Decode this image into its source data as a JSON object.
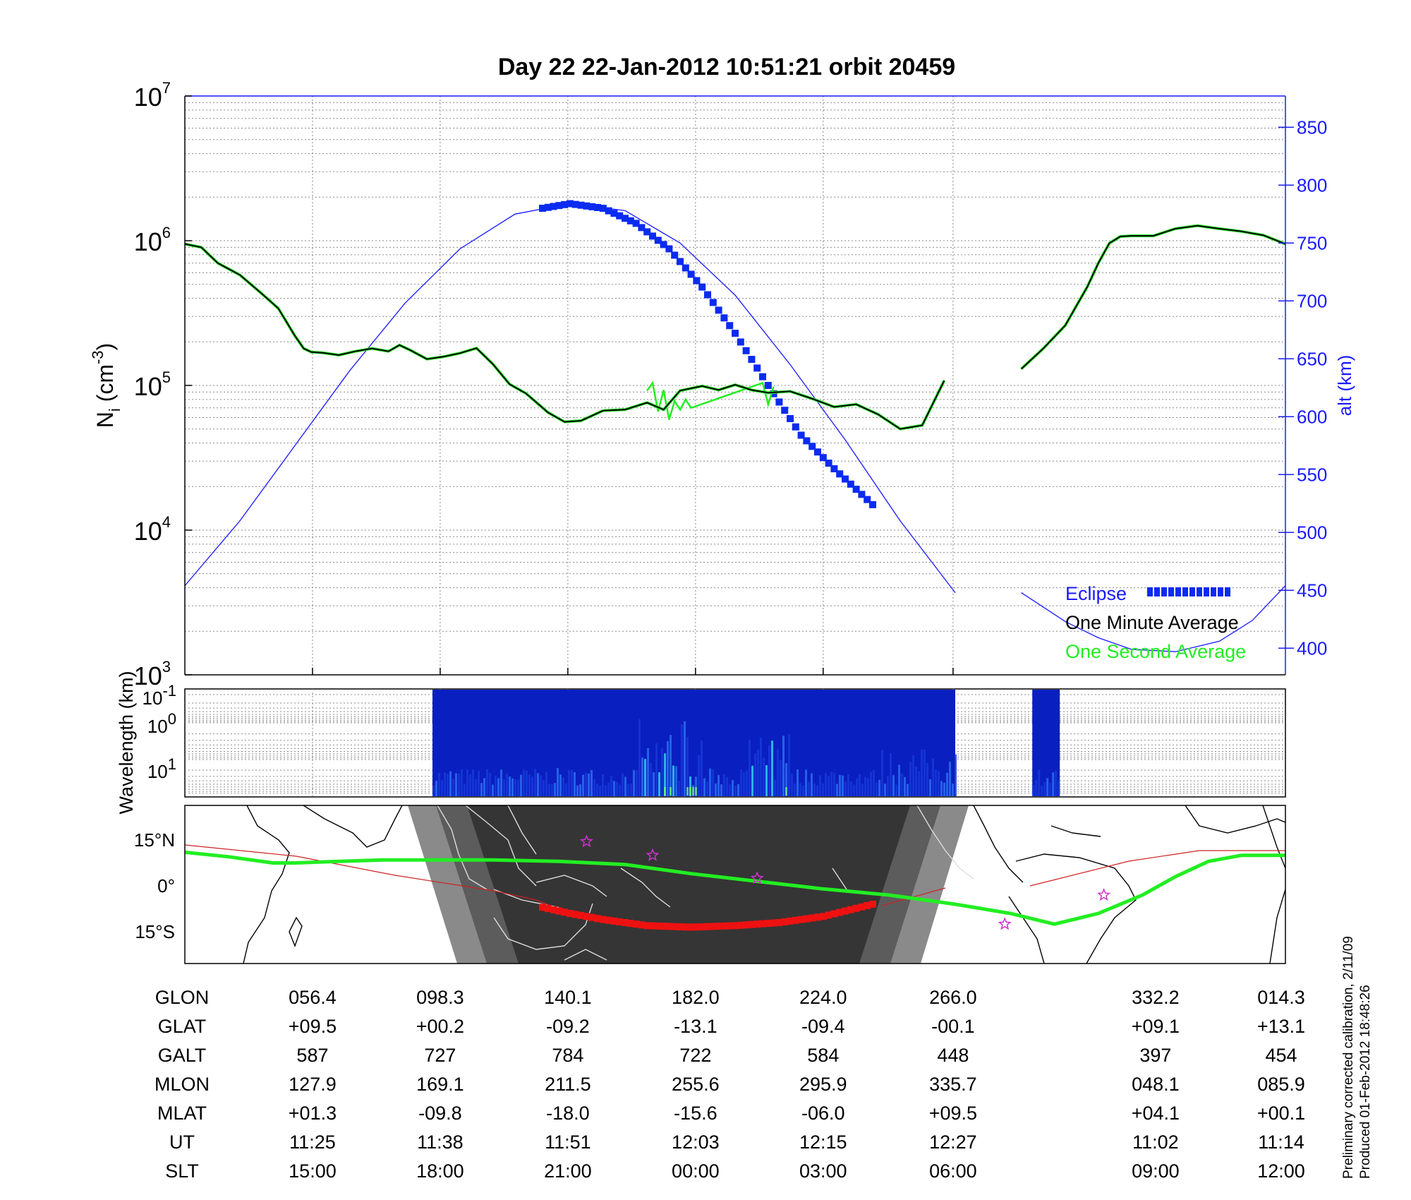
{
  "title": "Day 22  22-Jan-2012 10:51:21   orbit 20459",
  "colors": {
    "density_minute": "#000000",
    "density_second": "#22ee22",
    "altitude": "#1a1aff",
    "eclipse": "#0b2bf0",
    "eclipse_track": "#ee1111",
    "orbit_track": "#22ee22",
    "terminator": "#444444"
  },
  "chart_data": [
    {
      "type": "line",
      "title": "Day 22  22-Jan-2012 10:51:21   orbit 20459",
      "ylabel": "N_i (cm^-3)",
      "yscale": "log",
      "ylim": [
        1000,
        10000000
      ],
      "y_ticks": [
        {
          "base": "10",
          "exp": "3",
          "value": 1000
        },
        {
          "base": "10",
          "exp": "4",
          "value": 10000
        },
        {
          "base": "10",
          "exp": "5",
          "value": 100000
        },
        {
          "base": "10",
          "exp": "6",
          "value": 1000000
        },
        {
          "base": "10",
          "exp": "7",
          "value": 10000000
        }
      ],
      "y2label": "alt (km)",
      "y2lim": [
        377,
        877
      ],
      "y2_ticks": [
        "400",
        "450",
        "500",
        "550",
        "600",
        "650",
        "700",
        "750",
        "800",
        "850"
      ],
      "xlim": [
        0,
        100
      ],
      "x_ticks": [
        11.6,
        23.2,
        34.8,
        46.4,
        58.0,
        69.8
      ],
      "legend": {
        "position": "bottom-right",
        "entries": [
          "Eclipse",
          "One Minute Average",
          "One Second Average"
        ]
      },
      "series": [
        {
          "name": "One Minute Average",
          "segment": 1,
          "x": [
            0,
            1.5,
            3,
            5,
            7,
            8.5,
            10,
            10.8,
            11.5,
            12.5,
            14,
            15.5,
            17,
            18.5,
            19.5,
            20.5,
            22,
            23.5,
            25,
            26.5,
            28,
            29.5,
            31,
            33,
            34.5,
            36,
            38,
            40,
            42,
            43.5,
            45,
            47,
            48.5,
            50,
            51.5,
            53,
            55,
            57,
            59,
            61,
            63,
            65,
            67,
            69
          ],
          "y": [
            950000,
            900000,
            700000,
            580000,
            430000,
            340000,
            220000,
            180000,
            170000,
            168000,
            162000,
            172000,
            180000,
            172000,
            190000,
            175000,
            152000,
            158000,
            167000,
            181000,
            140000,
            102000,
            88000,
            65000,
            56000,
            57000,
            67000,
            68000,
            76000,
            68000,
            92000,
            99000,
            93000,
            101000,
            93000,
            89000,
            91000,
            81000,
            71000,
            74000,
            63000,
            50000,
            53000,
            108000
          ]
        },
        {
          "name": "One Minute Average",
          "segment": 2,
          "x": [
            76,
            78,
            80,
            82,
            83,
            84,
            85,
            86,
            88,
            90,
            92,
            94,
            96,
            98,
            100
          ],
          "y": [
            130000,
            180000,
            260000,
            480000,
            700000,
            960000,
            1070000,
            1080000,
            1080000,
            1210000,
            1270000,
            1210000,
            1160000,
            1090000,
            950000
          ]
        },
        {
          "name": "One Second Average",
          "segment": 1,
          "x": [
            42,
            42.5,
            43,
            43.5,
            44,
            44.5,
            45,
            45.5,
            46,
            52.5,
            53,
            53.5
          ],
          "y": [
            92000,
            104000,
            66000,
            93000,
            58000,
            78000,
            68000,
            80000,
            70000,
            104000,
            74000,
            98000
          ]
        },
        {
          "name": "Altitude",
          "axis": "y2",
          "x": [
            0,
            5,
            10,
            15,
            20,
            25,
            30,
            35,
            40,
            45,
            50,
            55,
            60,
            65,
            70
          ],
          "y": [
            454,
            510,
            575,
            640,
            698,
            745,
            775,
            784,
            778,
            750,
            705,
            645,
            580,
            510,
            448
          ]
        },
        {
          "name": "Altitude",
          "axis": "y2",
          "segment": 2,
          "x": [
            76,
            80,
            83,
            86,
            90,
            94,
            97,
            100
          ],
          "y": [
            448,
            423,
            409,
            399,
            397,
            406,
            424,
            454
          ]
        },
        {
          "name": "Eclipse",
          "axis": "y2",
          "x": [
            32.5,
            35,
            38,
            41,
            44,
            47,
            50,
            53,
            56,
            59,
            62.5
          ],
          "y": [
            780,
            784,
            780,
            767,
            745,
            712,
            672,
            627,
            584,
            555,
            524
          ]
        }
      ]
    },
    {
      "type": "heatmap",
      "ylabel": "Wavelength (km)",
      "y_ticks": [
        {
          "base": "10",
          "exp": "-1"
        },
        {
          "base": "10",
          "exp": "0"
        },
        {
          "base": "10",
          "exp": "1"
        }
      ],
      "data_coverage": [
        [
          22.5,
          70.0
        ],
        [
          77.0,
          79.5
        ]
      ]
    },
    {
      "type": "map",
      "y_ticks": [
        "15°N",
        "0°",
        "15°S"
      ],
      "series": [
        {
          "name": "Orbit track (green)",
          "x": [
            0,
            4,
            8,
            10,
            14,
            18,
            22,
            28,
            34,
            40,
            46,
            52,
            58,
            64,
            70,
            75,
            79,
            83,
            87,
            90,
            93,
            96,
            100
          ],
          "y": [
            11,
            9.5,
            7.5,
            7.5,
            8,
            8.5,
            8.5,
            8.5,
            8,
            7,
            4,
            1.5,
            -1,
            -3,
            -6,
            -9,
            -12.5,
            -9,
            -3,
            3,
            8,
            10,
            10
          ]
        },
        {
          "name": "Eclipse track (red)",
          "x": [
            32.5,
            35,
            38,
            42,
            46,
            50,
            54,
            58,
            62.5
          ],
          "y": [
            -7,
            -9,
            -11,
            -13,
            -13.5,
            -13,
            -12,
            -10,
            -6
          ]
        },
        {
          "name": "Stars",
          "x": [
            36.5,
            42.5,
            52,
            74.5,
            83.5
          ],
          "y": [
            14.5,
            10,
            2.5,
            -12.5,
            -3
          ]
        }
      ]
    }
  ],
  "table": {
    "row_labels": [
      "GLON",
      "GLAT",
      "GALT",
      "MLON",
      "MLAT",
      "UT",
      "SLT"
    ],
    "columns": [
      {
        "x": 11.6,
        "values": [
          "056.4",
          "+09.5",
          "587",
          "127.9",
          "+01.3",
          "11:25",
          "15:00"
        ]
      },
      {
        "x": 23.2,
        "values": [
          "098.3",
          "+00.2",
          "727",
          "169.1",
          "-09.8",
          "11:38",
          "18:00"
        ]
      },
      {
        "x": 34.8,
        "values": [
          "140.1",
          "-09.2",
          "784",
          "211.5",
          "-18.0",
          "11:51",
          "21:00"
        ]
      },
      {
        "x": 46.4,
        "values": [
          "182.0",
          "-13.1",
          "722",
          "255.6",
          "-15.6",
          "12:03",
          "00:00"
        ]
      },
      {
        "x": 58.0,
        "values": [
          "224.0",
          "-09.4",
          "584",
          "295.9",
          "-06.0",
          "12:15",
          "03:00"
        ]
      },
      {
        "x": 69.8,
        "values": [
          "266.0",
          "-00.1",
          "448",
          "335.7",
          "+09.5",
          "12:27",
          "06:00"
        ]
      },
      {
        "x": 88.2,
        "values": [
          "332.2",
          "+09.1",
          "397",
          "048.1",
          "+04.1",
          "11:02",
          "09:00"
        ]
      },
      {
        "x": 100,
        "values": [
          "014.3",
          "+13.1",
          "454",
          "085.9",
          "+00.1",
          "11:14",
          "12:00"
        ]
      }
    ]
  },
  "notes": [
    "Preliminary corrected calibration, 2/11/09",
    "Produced 01-Feb-2012 18:48:26"
  ]
}
